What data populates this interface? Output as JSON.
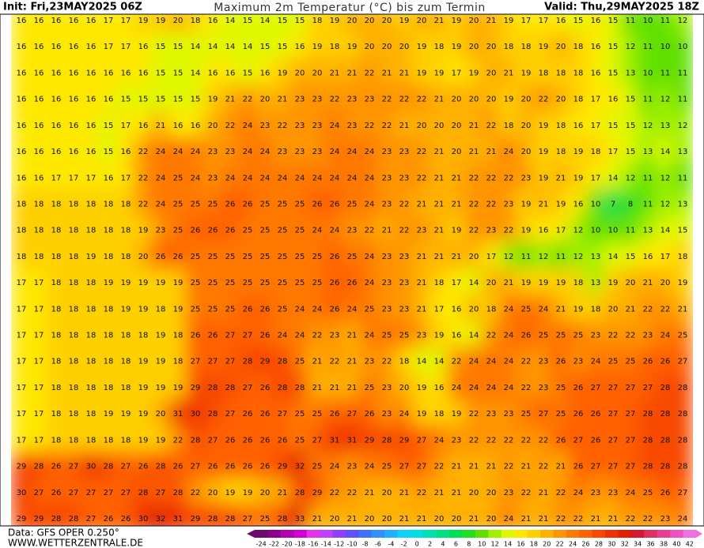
{
  "header": {
    "init": "Init: Fri,23MAY2025 06Z",
    "title": "Maximum 2m Temperatur (°C) bis zum Termin",
    "valid": "Valid: Thu,29MAY2025 18Z"
  },
  "footer": {
    "data": "Data: GFS OPER 0.250°",
    "site": "WWW.WETTERZENTRALE.DE"
  },
  "legend": {
    "labels": [
      -24,
      -22,
      -20,
      -18,
      -16,
      -14,
      -12,
      -10,
      -8,
      -6,
      -4,
      -2,
      0,
      2,
      4,
      6,
      8,
      10,
      12,
      14,
      16,
      18,
      20,
      22,
      24,
      26,
      28,
      30,
      32,
      34,
      36,
      38,
      40,
      42
    ],
    "colors": [
      "#6b0b6b",
      "#8b008b",
      "#b000b0",
      "#d000d0",
      "#e830e8",
      "#c040ff",
      "#9040ff",
      "#6050ff",
      "#4070ff",
      "#3090ff",
      "#20b0ff",
      "#10d0ff",
      "#00e0e0",
      "#00e0b0",
      "#00e080",
      "#00e050",
      "#20e020",
      "#60e000",
      "#a0f000",
      "#e0f800",
      "#ffe800",
      "#ffd000",
      "#ffb000",
      "#ff9400",
      "#ff7800",
      "#ff6000",
      "#f84800",
      "#f03000",
      "#e02000",
      "#d81830",
      "#e03060",
      "#e84090",
      "#f050c0",
      "#f070e0"
    ]
  },
  "map": {
    "rows": [
      [
        16,
        16,
        16,
        16,
        16,
        17,
        17,
        19,
        19,
        20,
        18,
        16,
        14,
        15,
        14,
        15,
        15,
        18,
        19,
        20,
        20,
        20,
        19,
        20,
        21,
        19,
        20,
        21,
        19,
        17,
        17,
        16,
        15,
        16,
        15,
        11,
        10,
        11,
        12
      ],
      [
        16,
        16,
        16,
        16,
        16,
        17,
        17,
        16,
        15,
        15,
        14,
        14,
        14,
        14,
        15,
        15,
        16,
        19,
        18,
        19,
        20,
        20,
        20,
        19,
        18,
        19,
        20,
        20,
        18,
        18,
        19,
        20,
        18,
        16,
        15,
        12,
        11,
        10,
        10
      ],
      [
        16,
        16,
        16,
        16,
        16,
        16,
        16,
        16,
        15,
        15,
        14,
        16,
        16,
        15,
        16,
        19,
        20,
        20,
        21,
        21,
        22,
        21,
        21,
        19,
        19,
        17,
        19,
        20,
        21,
        19,
        18,
        18,
        18,
        16,
        15,
        13,
        10,
        11,
        11
      ],
      [
        16,
        16,
        16,
        16,
        16,
        16,
        15,
        15,
        15,
        15,
        15,
        19,
        21,
        22,
        20,
        21,
        23,
        23,
        22,
        23,
        23,
        22,
        22,
        22,
        21,
        20,
        20,
        20,
        19,
        20,
        22,
        20,
        18,
        17,
        16,
        15,
        11,
        12,
        11
      ],
      [
        16,
        16,
        16,
        16,
        16,
        15,
        17,
        16,
        21,
        16,
        16,
        20,
        22,
        24,
        23,
        22,
        23,
        23,
        24,
        23,
        22,
        22,
        21,
        20,
        20,
        20,
        21,
        22,
        18,
        20,
        19,
        18,
        16,
        17,
        15,
        15,
        12,
        13,
        12
      ],
      [
        16,
        16,
        16,
        16,
        16,
        15,
        16,
        22,
        24,
        24,
        24,
        23,
        23,
        24,
        24,
        23,
        23,
        23,
        24,
        24,
        24,
        23,
        23,
        22,
        21,
        20,
        21,
        21,
        24,
        20,
        19,
        18,
        19,
        18,
        17,
        15,
        13,
        14,
        13
      ],
      [
        16,
        16,
        17,
        17,
        17,
        16,
        17,
        22,
        24,
        25,
        24,
        23,
        24,
        24,
        24,
        24,
        24,
        24,
        24,
        24,
        24,
        23,
        23,
        22,
        21,
        21,
        22,
        22,
        22,
        23,
        19,
        21,
        19,
        17,
        14,
        12,
        11,
        12,
        11
      ],
      [
        18,
        18,
        18,
        18,
        18,
        18,
        18,
        22,
        24,
        25,
        25,
        25,
        26,
        26,
        25,
        25,
        25,
        26,
        26,
        25,
        24,
        23,
        22,
        21,
        21,
        21,
        22,
        22,
        23,
        19,
        21,
        19,
        16,
        10,
        7,
        8,
        11,
        12,
        13
      ],
      [
        18,
        18,
        18,
        18,
        18,
        18,
        18,
        19,
        23,
        25,
        26,
        26,
        26,
        25,
        25,
        25,
        25,
        24,
        24,
        23,
        22,
        21,
        22,
        23,
        21,
        19,
        22,
        23,
        22,
        19,
        16,
        17,
        12,
        10,
        10,
        11,
        13,
        14,
        15
      ],
      [
        18,
        18,
        18,
        18,
        19,
        18,
        18,
        20,
        26,
        26,
        25,
        25,
        25,
        25,
        25,
        25,
        25,
        25,
        26,
        25,
        24,
        23,
        23,
        21,
        21,
        21,
        20,
        17,
        12,
        11,
        12,
        11,
        12,
        13,
        14,
        15,
        16,
        17,
        18
      ],
      [
        17,
        17,
        18,
        18,
        18,
        19,
        19,
        19,
        19,
        19,
        25,
        25,
        25,
        25,
        25,
        25,
        25,
        25,
        26,
        26,
        24,
        23,
        23,
        21,
        18,
        17,
        14,
        20,
        21,
        19,
        19,
        19,
        18,
        13,
        19,
        20,
        21,
        20,
        19
      ],
      [
        17,
        17,
        18,
        18,
        18,
        18,
        19,
        19,
        18,
        19,
        25,
        25,
        25,
        26,
        26,
        25,
        24,
        24,
        26,
        24,
        25,
        23,
        23,
        21,
        17,
        16,
        20,
        18,
        24,
        25,
        24,
        21,
        19,
        18,
        20,
        21,
        22,
        22,
        21
      ],
      [
        17,
        17,
        18,
        18,
        18,
        18,
        18,
        18,
        19,
        18,
        26,
        26,
        27,
        27,
        26,
        24,
        24,
        22,
        23,
        21,
        24,
        25,
        25,
        23,
        19,
        16,
        14,
        22,
        24,
        26,
        25,
        25,
        25,
        23,
        22,
        22,
        23,
        24,
        25
      ],
      [
        17,
        17,
        18,
        18,
        18,
        18,
        18,
        19,
        19,
        18,
        27,
        27,
        27,
        28,
        29,
        28,
        25,
        21,
        22,
        21,
        23,
        22,
        18,
        14,
        14,
        22,
        24,
        24,
        24,
        22,
        23,
        26,
        23,
        24,
        25,
        25,
        26,
        26,
        27
      ],
      [
        17,
        17,
        18,
        18,
        18,
        18,
        18,
        19,
        19,
        19,
        29,
        28,
        28,
        27,
        26,
        28,
        28,
        21,
        21,
        21,
        25,
        23,
        20,
        19,
        16,
        24,
        24,
        24,
        24,
        22,
        23,
        25,
        26,
        27,
        27,
        27,
        27,
        28,
        28
      ],
      [
        17,
        17,
        18,
        18,
        18,
        19,
        19,
        19,
        20,
        31,
        30,
        28,
        27,
        26,
        26,
        27,
        25,
        25,
        26,
        27,
        26,
        23,
        24,
        19,
        18,
        19,
        22,
        23,
        23,
        25,
        27,
        25,
        26,
        26,
        27,
        27,
        28,
        28,
        28
      ],
      [
        17,
        17,
        18,
        18,
        18,
        18,
        18,
        19,
        19,
        22,
        28,
        27,
        26,
        26,
        26,
        26,
        25,
        27,
        31,
        31,
        29,
        28,
        29,
        27,
        24,
        23,
        22,
        22,
        22,
        22,
        22,
        26,
        27,
        26,
        27,
        27,
        28,
        28,
        28
      ],
      [
        29,
        28,
        26,
        27,
        30,
        28,
        27,
        26,
        28,
        26,
        27,
        26,
        26,
        26,
        26,
        29,
        32,
        25,
        24,
        23,
        24,
        25,
        27,
        27,
        22,
        21,
        21,
        21,
        22,
        21,
        22,
        21,
        26,
        27,
        27,
        27,
        28,
        28,
        28
      ],
      [
        30,
        27,
        26,
        27,
        27,
        27,
        27,
        28,
        27,
        28,
        22,
        20,
        19,
        19,
        20,
        21,
        28,
        29,
        22,
        22,
        21,
        20,
        21,
        22,
        21,
        21,
        20,
        20,
        23,
        22,
        21,
        22,
        24,
        23,
        23,
        24,
        25,
        26,
        27
      ],
      [
        29,
        29,
        28,
        28,
        27,
        26,
        26,
        30,
        32,
        31,
        29,
        28,
        28,
        27,
        25,
        28,
        33,
        21,
        20,
        21,
        20,
        20,
        21,
        21,
        20,
        20,
        21,
        20,
        24,
        21,
        21,
        22,
        22,
        21,
        21,
        22,
        22,
        23,
        24
      ]
    ]
  }
}
